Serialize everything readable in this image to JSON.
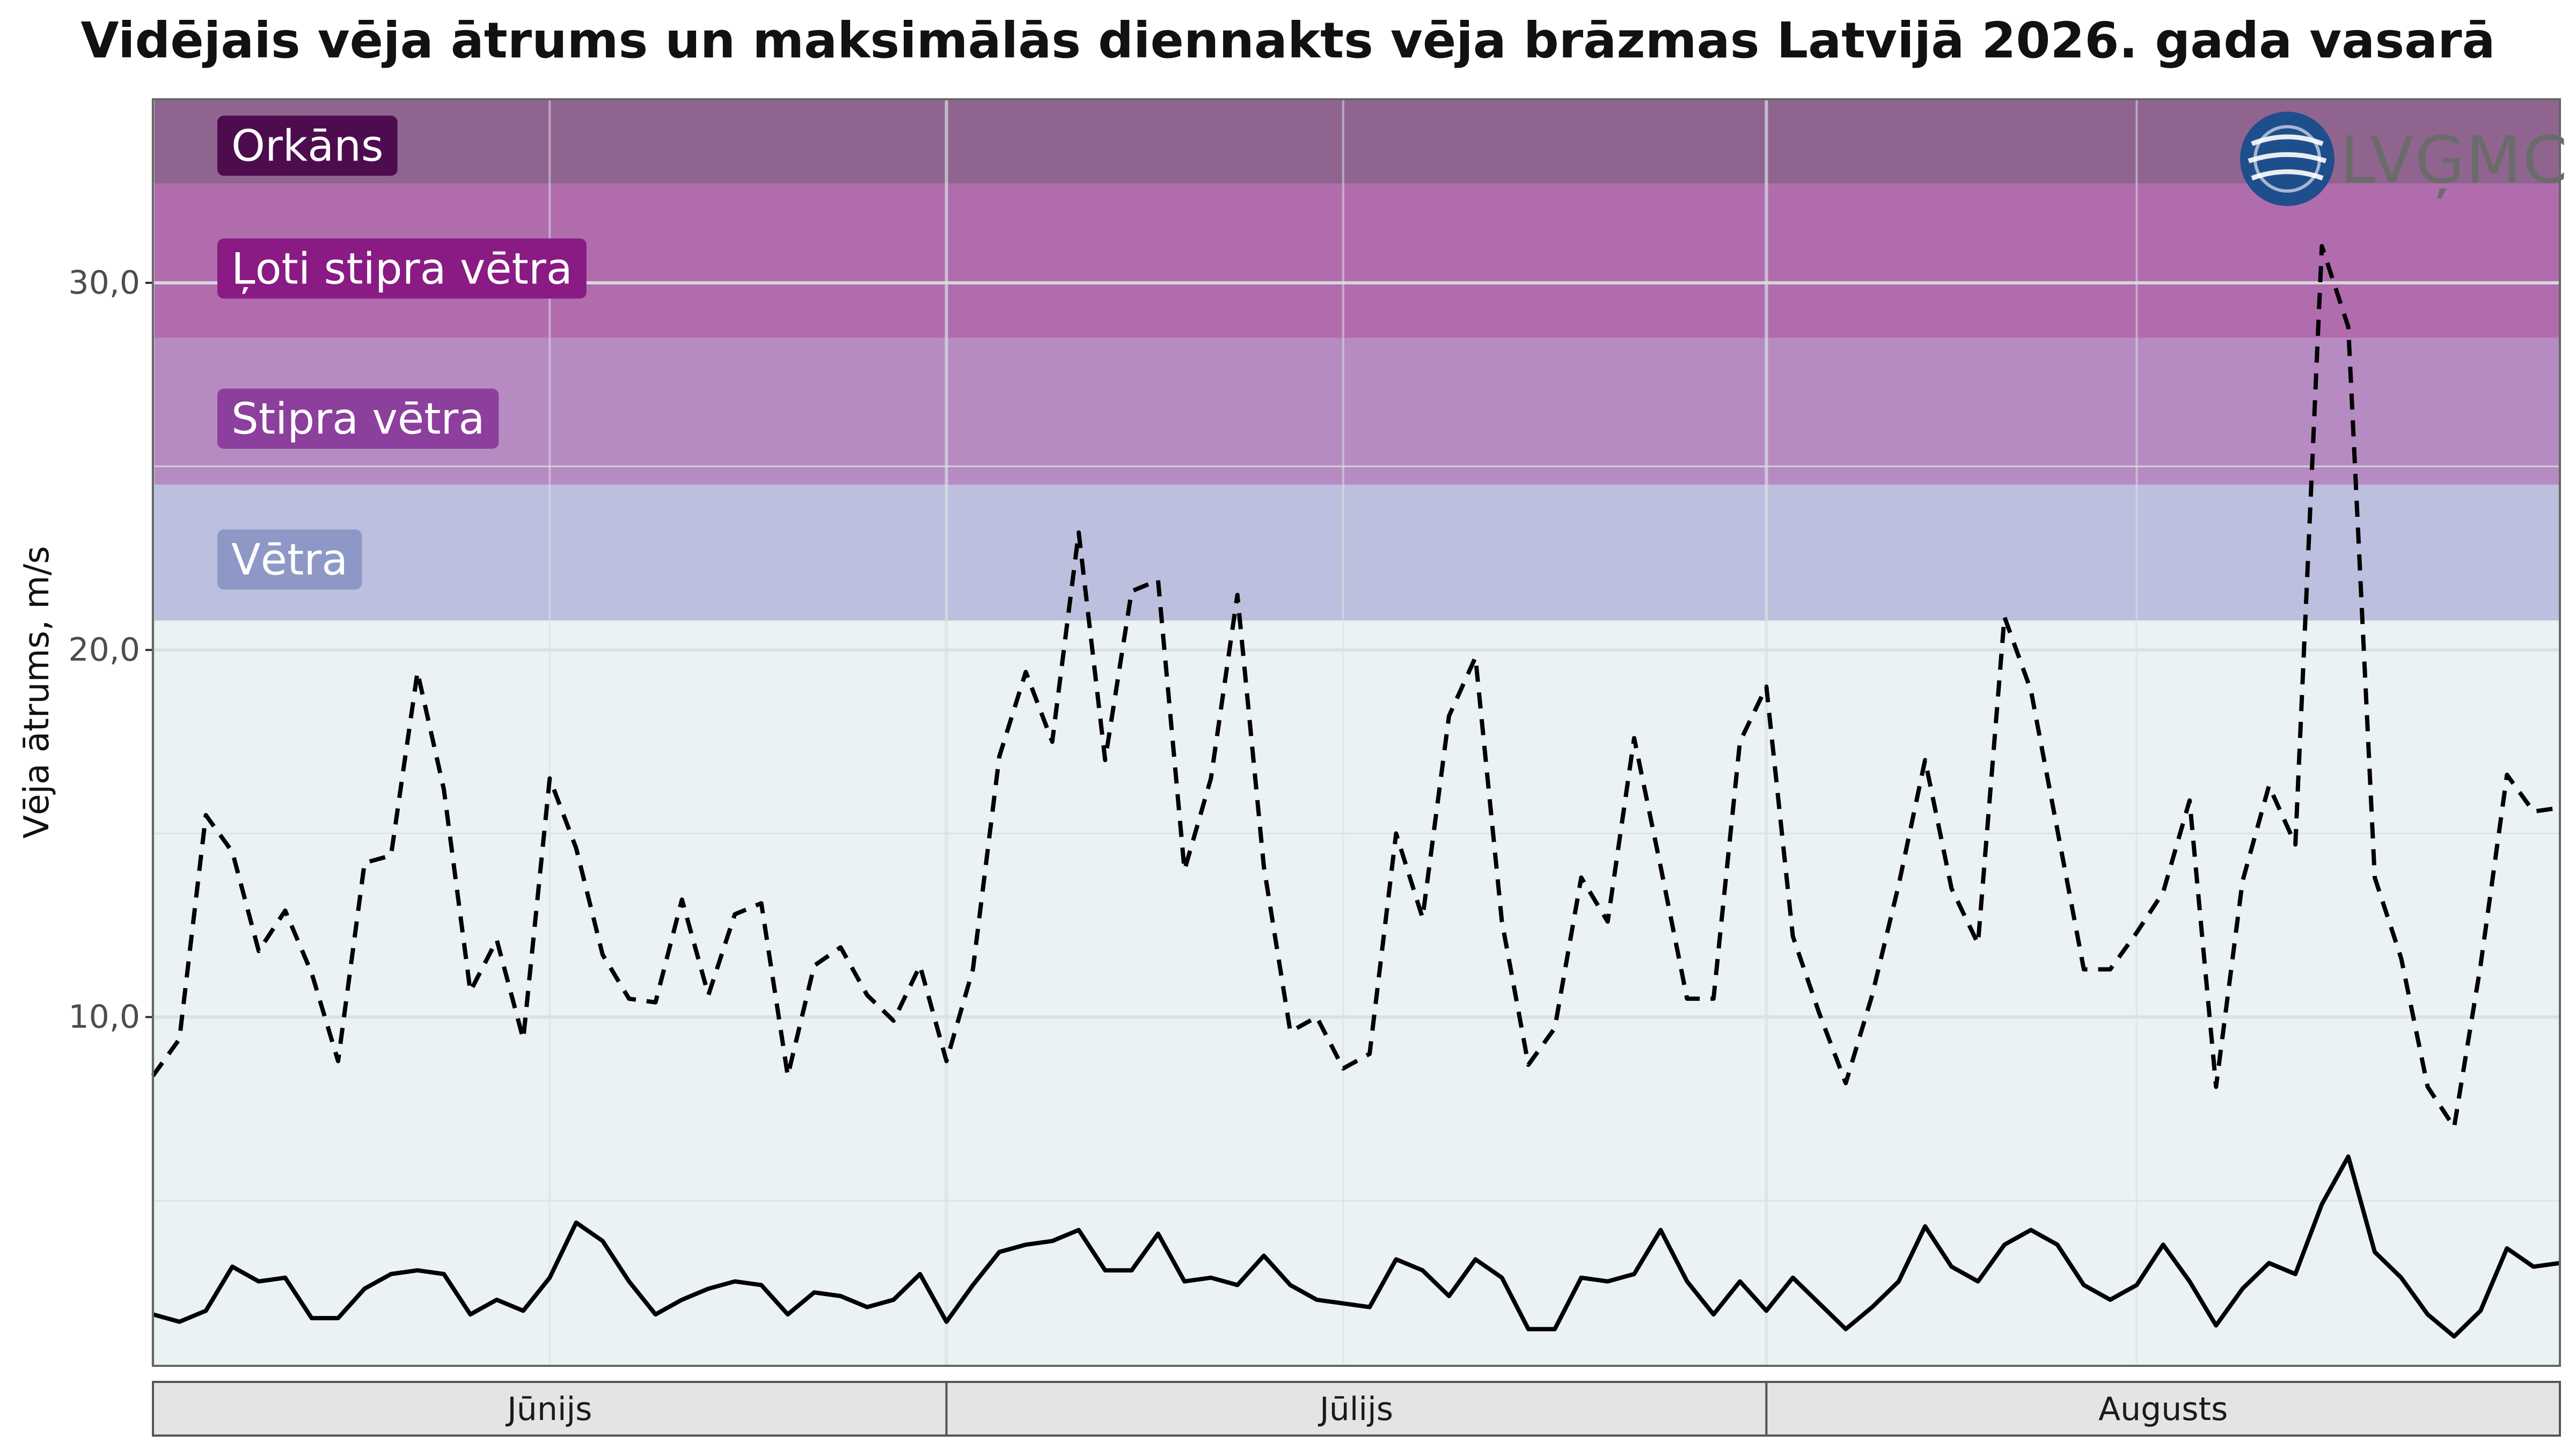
{
  "title": "Vidējais vēja ātrums un maksimālās diennakts vēja brāzmas Latvijā 2026. gada vasarā",
  "logo": {
    "text": "LVĢMC",
    "icon": "globe-wave-icon",
    "color": "#1f4e8c"
  },
  "colors": {
    "panel_background": "#ebf2f4",
    "grid": "#d9e1e4",
    "strip": "#e4e4e4",
    "mean_line": "#000000",
    "gust_line": "#000000"
  },
  "chart_data": {
    "type": "line",
    "title": "Vidējais vēja ātrums un maksimālās diennakts vēja brāzmas Latvijā 2026. gada vasarā",
    "xlabel": "",
    "ylabel": "Vēja ātrums, m/s",
    "x_start": "2026-06-01",
    "x_end": "2026-08-31",
    "ylim": [
      0.5,
      35
    ],
    "y_ticks": [
      {
        "value": 10,
        "label": "10,0"
      },
      {
        "value": 20,
        "label": "20,0"
      },
      {
        "value": 30,
        "label": "30,0"
      }
    ],
    "grid": true,
    "month_strips": [
      {
        "label": "Jūnijs",
        "start": "2026-06-01",
        "end": "2026-07-01"
      },
      {
        "label": "Jūlijs",
        "start": "2026-07-01",
        "end": "2026-08-01"
      },
      {
        "label": "Augusts",
        "start": "2026-08-01",
        "end": "2026-08-31"
      }
    ],
    "bands": [
      {
        "label": "Vētra",
        "from": 20.8,
        "to": 24.5,
        "color": "#bcc0de",
        "label_bg": "#8e98c6"
      },
      {
        "label": "Stipra vētra",
        "from": 24.5,
        "to": 28.5,
        "color": "#b68bc2",
        "label_bg": "#8c3f9c"
      },
      {
        "label": "Ļoti stipra vētra",
        "from": 28.5,
        "to": 32.7,
        "color": "#b16cae",
        "label_bg": "#8a1a84"
      },
      {
        "label": "Orkāns",
        "from": 32.7,
        "to": 35,
        "color": "#8f6590",
        "label_bg": "#4d0c4e"
      }
    ],
    "series": [
      {
        "style": "solid",
        "x": [
          "2026-06-01",
          "2026-06-02",
          "2026-06-03",
          "2026-06-04",
          "2026-06-05",
          "2026-06-06",
          "2026-06-07",
          "2026-06-08",
          "2026-06-09",
          "2026-06-10",
          "2026-06-11",
          "2026-06-12",
          "2026-06-13",
          "2026-06-14",
          "2026-06-15",
          "2026-06-16",
          "2026-06-17",
          "2026-06-18",
          "2026-06-19",
          "2026-06-20",
          "2026-06-21",
          "2026-06-22",
          "2026-06-23",
          "2026-06-24",
          "2026-06-25",
          "2026-06-26",
          "2026-06-27",
          "2026-06-28",
          "2026-06-29",
          "2026-06-30",
          "2026-07-01",
          "2026-07-02",
          "2026-07-03",
          "2026-07-04",
          "2026-07-05",
          "2026-07-06",
          "2026-07-07",
          "2026-07-08",
          "2026-07-09",
          "2026-07-10",
          "2026-07-11",
          "2026-07-12",
          "2026-07-13",
          "2026-07-14",
          "2026-07-15",
          "2026-07-16",
          "2026-07-17",
          "2026-07-18",
          "2026-07-19",
          "2026-07-20",
          "2026-07-21",
          "2026-07-22",
          "2026-07-23",
          "2026-07-24",
          "2026-07-25",
          "2026-07-26",
          "2026-07-27",
          "2026-07-28",
          "2026-07-29",
          "2026-07-30",
          "2026-07-31",
          "2026-08-01",
          "2026-08-02",
          "2026-08-03",
          "2026-08-04",
          "2026-08-05",
          "2026-08-06",
          "2026-08-07",
          "2026-08-08",
          "2026-08-09",
          "2026-08-10",
          "2026-08-11",
          "2026-08-12",
          "2026-08-13",
          "2026-08-14",
          "2026-08-15",
          "2026-08-16",
          "2026-08-17",
          "2026-08-18",
          "2026-08-19",
          "2026-08-20",
          "2026-08-21",
          "2026-08-22",
          "2026-08-23",
          "2026-08-24",
          "2026-08-25",
          "2026-08-26",
          "2026-08-27",
          "2026-08-28",
          "2026-08-29",
          "2026-08-30",
          "2026-08-31"
        ],
        "y": [
          1.9,
          1.7,
          2.0,
          3.2,
          2.8,
          2.9,
          1.8,
          1.8,
          2.6,
          3.0,
          3.1,
          3.0,
          1.9,
          2.3,
          2.0,
          2.9,
          4.4,
          3.9,
          2.8,
          1.9,
          2.3,
          2.6,
          2.8,
          2.7,
          1.9,
          2.5,
          2.4,
          2.1,
          2.3,
          3.0,
          1.7,
          2.7,
          3.6,
          3.8,
          3.9,
          4.2,
          3.1,
          3.1,
          4.1,
          2.8,
          2.9,
          2.7,
          3.5,
          2.7,
          2.3,
          2.2,
          2.1,
          3.4,
          3.1,
          2.4,
          3.4,
          2.9,
          1.5,
          1.5,
          2.9,
          2.8,
          3.0,
          4.2,
          2.8,
          1.9,
          2.8,
          2.0,
          2.9,
          2.2,
          1.5,
          2.1,
          2.8,
          4.3,
          3.2,
          2.8,
          3.8,
          4.2,
          3.8,
          2.7,
          2.3,
          2.7,
          3.8,
          2.8,
          1.6,
          2.6,
          3.3,
          3.0,
          4.9,
          6.2,
          3.6,
          2.9,
          1.9,
          1.3,
          2.0,
          3.7,
          3.2,
          3.3
        ]
      },
      {
        "style": "dashed",
        "x": [
          "2026-06-01",
          "2026-06-02",
          "2026-06-03",
          "2026-06-04",
          "2026-06-05",
          "2026-06-06",
          "2026-06-07",
          "2026-06-08",
          "2026-06-09",
          "2026-06-10",
          "2026-06-11",
          "2026-06-12",
          "2026-06-13",
          "2026-06-14",
          "2026-06-15",
          "2026-06-16",
          "2026-06-17",
          "2026-06-18",
          "2026-06-19",
          "2026-06-20",
          "2026-06-21",
          "2026-06-22",
          "2026-06-23",
          "2026-06-24",
          "2026-06-25",
          "2026-06-26",
          "2026-06-27",
          "2026-06-28",
          "2026-06-29",
          "2026-06-30",
          "2026-07-01",
          "2026-07-02",
          "2026-07-03",
          "2026-07-04",
          "2026-07-05",
          "2026-07-06",
          "2026-07-07",
          "2026-07-08",
          "2026-07-09",
          "2026-07-10",
          "2026-07-11",
          "2026-07-12",
          "2026-07-13",
          "2026-07-14",
          "2026-07-15",
          "2026-07-16",
          "2026-07-17",
          "2026-07-18",
          "2026-07-19",
          "2026-07-20",
          "2026-07-21",
          "2026-07-22",
          "2026-07-23",
          "2026-07-24",
          "2026-07-25",
          "2026-07-26",
          "2026-07-27",
          "2026-07-28",
          "2026-07-29",
          "2026-07-30",
          "2026-07-31",
          "2026-08-01",
          "2026-08-02",
          "2026-08-03",
          "2026-08-04",
          "2026-08-05",
          "2026-08-06",
          "2026-08-07",
          "2026-08-08",
          "2026-08-09",
          "2026-08-10",
          "2026-08-11",
          "2026-08-12",
          "2026-08-13",
          "2026-08-14",
          "2026-08-15",
          "2026-08-16",
          "2026-08-17",
          "2026-08-18",
          "2026-08-19",
          "2026-08-20",
          "2026-08-21",
          "2026-08-22",
          "2026-08-23",
          "2026-08-24",
          "2026-08-25",
          "2026-08-26",
          "2026-08-27",
          "2026-08-28",
          "2026-08-29",
          "2026-08-30",
          "2026-08-31"
        ],
        "y": [
          8.4,
          9.4,
          15.5,
          14.5,
          11.8,
          12.9,
          11.2,
          8.8,
          14.2,
          14.4,
          19.4,
          16.2,
          10.7,
          12.1,
          9.4,
          16.5,
          14.6,
          11.7,
          10.5,
          10.4,
          13.2,
          10.6,
          12.8,
          13.1,
          8.4,
          11.4,
          11.9,
          10.6,
          9.9,
          11.4,
          8.8,
          11.3,
          17.1,
          19.4,
          17.5,
          23.2,
          17.0,
          21.6,
          21.9,
          14.0,
          16.5,
          21.5,
          14.1,
          9.6,
          10.0,
          8.6,
          9.0,
          15.0,
          12.7,
          18.2,
          19.8,
          12.6,
          8.7,
          9.7,
          13.8,
          12.6,
          17.6,
          14.1,
          10.5,
          10.5,
          17.5,
          19.0,
          12.2,
          10.1,
          8.2,
          10.6,
          13.6,
          17.0,
          13.5,
          12.0,
          20.9,
          18.9,
          15.1,
          11.3,
          11.3,
          12.3,
          13.4,
          15.9,
          8.1,
          13.7,
          16.3,
          14.7,
          31.0,
          28.8,
          13.8,
          11.6,
          8.1,
          7.0,
          11.4,
          16.6,
          15.6,
          15.7
        ]
      }
    ]
  }
}
